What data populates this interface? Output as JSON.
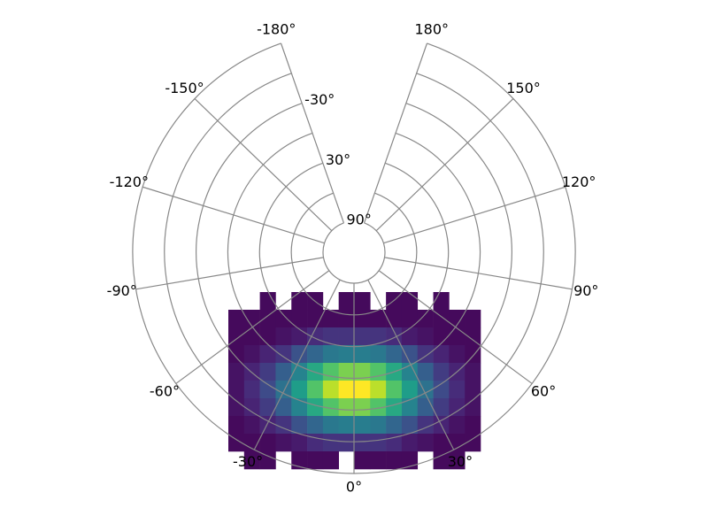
{
  "chart_data": {
    "type": "polar-histogram",
    "colormap": "viridis",
    "lonlim": [
      -180,
      180
    ],
    "latlim": [
      -90,
      90
    ],
    "lonticks": [
      {
        "value": -180,
        "label": "-180°"
      },
      {
        "value": -150,
        "label": "-150°"
      },
      {
        "value": -120,
        "label": "-120°"
      },
      {
        "value": -90,
        "label": "-90°"
      },
      {
        "value": -60,
        "label": "-60°"
      },
      {
        "value": -30,
        "label": "-30°"
      },
      {
        "value": 0,
        "label": "0°"
      },
      {
        "value": 30,
        "label": "30°"
      },
      {
        "value": 60,
        "label": "60°"
      },
      {
        "value": 90,
        "label": "90°"
      },
      {
        "value": 120,
        "label": "120°"
      },
      {
        "value": 150,
        "label": "150°"
      },
      {
        "value": 180,
        "label": "180°"
      }
    ],
    "latticks": [
      {
        "value": -30,
        "label": "-30°"
      },
      {
        "value": 30,
        "label": "30°"
      },
      {
        "value": 90,
        "label": "90°"
      }
    ],
    "lat_minor": [
      -90,
      -60,
      0,
      60
    ],
    "counts": [
      [
        0,
        0,
        1,
        0,
        1,
        1,
        0,
        1,
        1,
        0,
        1,
        1,
        0,
        1,
        0,
        0
      ],
      [
        1,
        1,
        1,
        1,
        1,
        1,
        1,
        1,
        1,
        1,
        1,
        1,
        1,
        1,
        1,
        1
      ],
      [
        1,
        1,
        1,
        2,
        3,
        5,
        6,
        6,
        6,
        6,
        5,
        3,
        2,
        1,
        1,
        1
      ],
      [
        1,
        2,
        4,
        6,
        10,
        13,
        16,
        17,
        17,
        16,
        13,
        10,
        6,
        4,
        2,
        1
      ],
      [
        2,
        4,
        7,
        12,
        18,
        24,
        29,
        32,
        32,
        29,
        24,
        18,
        12,
        7,
        4,
        2
      ],
      [
        2,
        5,
        9,
        15,
        22,
        29,
        36,
        40,
        40,
        36,
        29,
        22,
        15,
        9,
        5,
        2
      ],
      [
        2,
        4,
        7,
        12,
        18,
        24,
        29,
        32,
        32,
        29,
        24,
        18,
        12,
        7,
        4,
        2
      ],
      [
        1,
        2,
        4,
        6,
        10,
        13,
        16,
        17,
        17,
        16,
        13,
        10,
        6,
        4,
        2,
        1
      ],
      [
        1,
        1,
        1,
        2,
        3,
        5,
        6,
        6,
        6,
        6,
        5,
        3,
        2,
        1,
        1,
        1
      ],
      [
        0,
        1,
        1,
        0,
        1,
        1,
        1,
        0,
        1,
        1,
        1,
        1,
        0,
        1,
        1,
        0
      ]
    ]
  }
}
